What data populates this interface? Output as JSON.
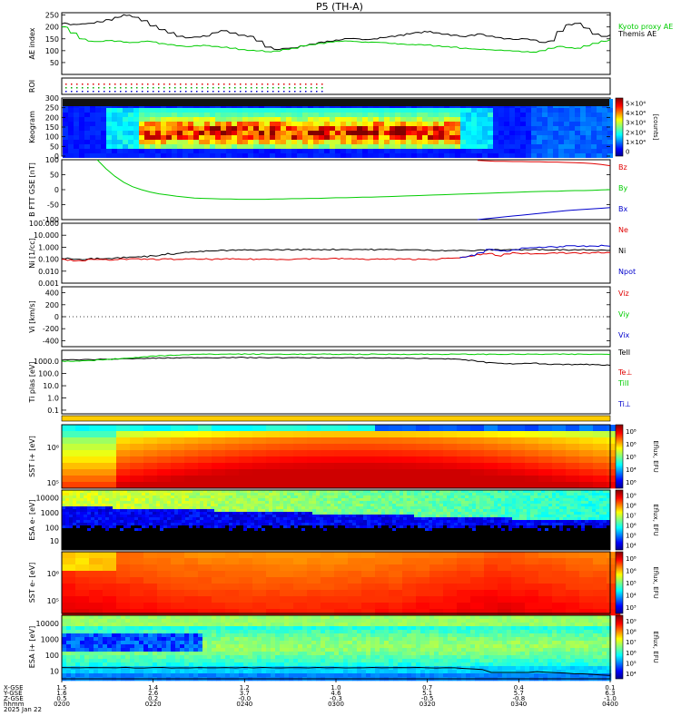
{
  "title": "P5 (TH-A)",
  "colors": {
    "red": "#e00000",
    "green": "#00cc00",
    "blue": "#0000cc",
    "black": "#000000",
    "yellow_bar": "#ffcc00"
  },
  "chart_data": {
    "type": "line",
    "title": "P5 (TH-A)",
    "time_axis": {
      "ticks": [
        "0200",
        "0220",
        "0240",
        "0300",
        "0320",
        "0340",
        "0400"
      ],
      "date": "2025 Jan 22",
      "row_labels": [
        "X-GSE",
        "Y-GSE",
        "Z-GSE",
        "hhmm",
        "2025 Jan 22"
      ],
      "x_gse": [
        "1.5",
        "1.4",
        "1.2",
        "1.0",
        "0.7",
        "0.4",
        "0.1"
      ],
      "y_gse": [
        "1.6",
        "2.6",
        "3.7",
        "4.6",
        "5.1",
        "5.7",
        "6.3"
      ],
      "z_gse": [
        "0.5",
        "0.2",
        "-0.0",
        "-0.3",
        "-0.5",
        "-0.8",
        "-1.0"
      ]
    },
    "panels": [
      {
        "id": "ae",
        "ylabel": "AE index",
        "yticks": [
          "50",
          "100",
          "150",
          "200",
          "250"
        ],
        "ylim": [
          0,
          260
        ],
        "legend": [
          "Kyoto proxy AE",
          "Themis AE"
        ],
        "series": [
          {
            "name": "Themis AE",
            "color": "black",
            "values": [
              215,
              210,
              212,
              215,
              222,
              230,
              240,
              250,
              240,
              225,
              205,
              190,
              175,
              160,
              155,
              158,
              162,
              175,
              185,
              175,
              165,
              160,
              140,
              115,
              105,
              110,
              112,
              120,
              128,
              135,
              140,
              145,
              150,
              150,
              148,
              150,
              155,
              160,
              165,
              172,
              176,
              180,
              175,
              170,
              165,
              160,
              165,
              170,
              160,
              155,
              150,
              148,
              150,
              145,
              135,
              140,
              180,
              210,
              215,
              195,
              170,
              160,
              165
            ]
          },
          {
            "name": "Kyoto proxy AE",
            "color": "green",
            "values": [
              200,
              175,
              150,
              140,
              138,
              142,
              140,
              135,
              136,
              140,
              138,
              130,
              125,
              120,
              118,
              120,
              122,
              118,
              115,
              110,
              105,
              102,
              100,
              95,
              98,
              105,
              110,
              120,
              125,
              130,
              135,
              140,
              140,
              138,
              136,
              135,
              134,
              130,
              128,
              126,
              125,
              124,
              120,
              118,
              115,
              110,
              108,
              106,
              104,
              102,
              100,
              98,
              96,
              94,
              100,
              110,
              118,
              112,
              110,
              120,
              130,
              140,
              148
            ]
          }
        ]
      },
      {
        "id": "roi",
        "ylabel": "ROI",
        "yticks": [],
        "series": []
      },
      {
        "id": "keogram",
        "ylabel": "Keogram",
        "yticks": [
          "0",
          "50",
          "100",
          "150",
          "200",
          "250",
          "300"
        ],
        "ylim": [
          0,
          300
        ],
        "colorbar": {
          "label": "[counts]",
          "ticks": [
            "0",
            "1×10⁴",
            "2×10⁴",
            "3×10⁴",
            "4×10⁴",
            "5×10⁴"
          ]
        }
      },
      {
        "id": "bfft",
        "ylabel": "B FTT GSE [nT]",
        "yticks": [
          "-100",
          "-50",
          "0",
          "50",
          "100"
        ],
        "ylim": [
          -100,
          100
        ],
        "legend": [
          "Bz",
          "By",
          "Bx"
        ],
        "series": [
          {
            "name": "Bz",
            "color": "red",
            "values": [
              null,
              null,
              null,
              null,
              null,
              null,
              null,
              null,
              null,
              null,
              null,
              null,
              null,
              null,
              null,
              null,
              null,
              null,
              null,
              null,
              null,
              null,
              null,
              null,
              null,
              null,
              null,
              null,
              null,
              null,
              null,
              null,
              null,
              null,
              null,
              null,
              null,
              null,
              null,
              null,
              null,
              null,
              null,
              null,
              null,
              null,
              null,
              98,
              96,
              95,
              95,
              94,
              94,
              93,
              93,
              92,
              92,
              91,
              90,
              89,
              87,
              84,
              80
            ]
          },
          {
            "name": "By",
            "color": "green",
            "values": [
              null,
              null,
              null,
              null,
              100,
              70,
              45,
              25,
              10,
              0,
              -8,
              -14,
              -18,
              -22,
              -25,
              -28,
              -29,
              -30,
              -31,
              -31,
              -32,
              -32,
              -32,
              -32,
              -31,
              -31,
              -30,
              -30,
              -29,
              -29,
              -28,
              -27,
              -27,
              -26,
              -25,
              -25,
              -24,
              -23,
              -22,
              -21,
              -20,
              -19,
              -18,
              -17,
              -16,
              -15,
              -14,
              -13,
              -12,
              -11,
              -10,
              -9,
              -8,
              -7,
              -6,
              -5,
              -5,
              -4,
              -3,
              -3,
              -2,
              -1,
              0
            ]
          },
          {
            "name": "Bx",
            "color": "blue",
            "values": [
              null,
              null,
              null,
              null,
              null,
              null,
              null,
              null,
              null,
              null,
              null,
              null,
              null,
              null,
              null,
              null,
              null,
              null,
              null,
              null,
              null,
              null,
              null,
              null,
              null,
              null,
              null,
              null,
              null,
              null,
              null,
              null,
              null,
              null,
              null,
              null,
              null,
              null,
              null,
              null,
              null,
              null,
              null,
              null,
              null,
              null,
              null,
              -100,
              -97,
              -94,
              -91,
              -88,
              -85,
              -82,
              -79,
              -76,
              -73,
              -70,
              -68,
              -66,
              -64,
              -62,
              -60
            ]
          }
        ]
      },
      {
        "id": "density",
        "ylabel": "Ni [1/cc]",
        "yticks": [
          "0.001",
          "0.010",
          "0.100",
          "1.000",
          "10.000",
          "100.000"
        ],
        "ylim": [
          0.001,
          100
        ],
        "log": true,
        "legend": [
          "Ne",
          "Ni",
          "Npot"
        ],
        "series": [
          {
            "name": "Ni",
            "color": "black",
            "values": [
              0.12,
              0.11,
              0.1,
              0.11,
              0.12,
              0.12,
              0.13,
              0.14,
              0.15,
              0.17,
              0.2,
              0.22,
              0.28,
              0.33,
              0.38,
              0.42,
              0.46,
              0.5,
              0.53,
              0.55,
              0.57,
              0.58,
              0.6,
              0.6,
              0.61,
              0.62,
              0.62,
              0.63,
              0.63,
              0.64,
              0.64,
              0.65,
              0.65,
              0.64,
              0.64,
              0.63,
              0.63,
              0.62,
              0.62,
              0.6,
              0.58,
              0.57,
              0.56,
              0.55,
              0.54,
              0.53,
              0.52,
              0.55,
              0.6,
              0.62,
              0.63,
              0.62,
              0.6,
              0.62,
              0.63,
              0.64,
              0.62,
              0.6,
              0.62,
              0.61,
              0.6,
              0.6,
              0.6
            ]
          },
          {
            "name": "Ne",
            "color": "red",
            "values": [
              0.09,
              0.08,
              0.08,
              0.09,
              0.09,
              0.09,
              0.1,
              0.1,
              0.1,
              0.1,
              0.1,
              0.1,
              0.1,
              0.1,
              0.1,
              0.1,
              0.1,
              0.1,
              0.1,
              0.1,
              0.1,
              0.1,
              0.1,
              0.1,
              0.1,
              0.1,
              0.1,
              0.11,
              0.11,
              0.11,
              0.11,
              0.11,
              0.11,
              0.1,
              0.1,
              0.1,
              0.1,
              0.1,
              0.1,
              0.1,
              0.1,
              0.1,
              0.1,
              0.11,
              0.12,
              0.14,
              0.18,
              0.25,
              0.3,
              0.2,
              0.25,
              0.35,
              0.3,
              0.28,
              0.3,
              0.35,
              0.33,
              0.3,
              0.32,
              0.33,
              0.35,
              0.34,
              0.33
            ]
          },
          {
            "name": "Npot",
            "color": "blue",
            "values": [
              null,
              null,
              null,
              null,
              null,
              null,
              null,
              null,
              null,
              null,
              null,
              null,
              null,
              null,
              null,
              null,
              null,
              null,
              null,
              null,
              null,
              null,
              null,
              null,
              null,
              null,
              null,
              null,
              null,
              null,
              null,
              null,
              null,
              null,
              null,
              null,
              null,
              null,
              null,
              null,
              null,
              null,
              null,
              null,
              null,
              0.14,
              0.2,
              0.35,
              0.6,
              0.55,
              0.5,
              0.6,
              0.8,
              0.9,
              1.0,
              1.1,
              1.1,
              1.2,
              1.2,
              1.2,
              1.25,
              1.3,
              1.3
            ]
          }
        ]
      },
      {
        "id": "velocity",
        "ylabel": "Vi [km/s]",
        "yticks": [
          "-400",
          "-200",
          "0",
          "200",
          "400"
        ],
        "ylim": [
          -500,
          500
        ],
        "legend": [
          "Viz",
          "Viy",
          "Vix"
        ],
        "series": []
      },
      {
        "id": "temperature",
        "ylabel": "Ti plas [eV]",
        "yticks": [
          "0.1",
          "1.0",
          "10.0",
          "100.0",
          "1000.0"
        ],
        "ylim": [
          0.05,
          8000
        ],
        "log": true,
        "legend": [
          "TeII",
          "Te⊥",
          "TiII",
          "Ti⊥"
        ],
        "series": [
          {
            "name": "TeII",
            "color": "black",
            "values": [
              1300,
              1350,
              1380,
              1400,
              1450,
              1500,
              1550,
              1600,
              1650,
              1700,
              1800,
              1850,
              1900,
              1950,
              1950,
              2000,
              2000,
              2000,
              2050,
              2050,
              2050,
              2000,
              2000,
              2000,
              2000,
              1950,
              1950,
              1950,
              1950,
              1950,
              1950,
              1900,
              1900,
              1900,
              1900,
              1900,
              1850,
              1850,
              1800,
              1800,
              1750,
              1700,
              1650,
              1600,
              1500,
              1400,
              1200,
              1000,
              800,
              700,
              650,
              600,
              650,
              700,
              600,
              550,
              550,
              550,
              550,
              550,
              550,
              500,
              500
            ]
          },
          {
            "name": "TiII",
            "color": "green",
            "values": [
              1000,
              1050,
              1100,
              1200,
              1300,
              1450,
              1600,
              1800,
              2000,
              2300,
              2600,
              2900,
              3200,
              3400,
              3600,
              3700,
              3800,
              3850,
              3900,
              3900,
              3900,
              3900,
              3900,
              3850,
              3850,
              3850,
              3850,
              3800,
              3800,
              3800,
              3800,
              3800,
              3800,
              3800,
              3800,
              3800,
              3800,
              3800,
              3800,
              3800,
              3800,
              3800,
              3800,
              3800,
              3800,
              3800,
              3800,
              3800,
              3800,
              3800,
              3800,
              3800,
              3800,
              3800,
              3800,
              3800,
              3800,
              3800,
              3800,
              3800,
              3800,
              3800,
              3800
            ]
          }
        ]
      },
      {
        "id": "sst_ion",
        "ylabel": "SST i+ [eV]",
        "yticks": [
          "10⁵",
          "10⁶"
        ],
        "colorbar": {
          "label": "Eflux, EFU",
          "ticks": [
            "10⁶",
            "10⁴",
            "10⁵",
            "10⁶",
            "10⁸"
          ]
        }
      },
      {
        "id": "esa_e",
        "ylabel": "ESA e- [eV]",
        "yticks": [
          "10",
          "100",
          "1000",
          "10000"
        ],
        "colorbar": {
          "label": "Eflux, EFU",
          "ticks": [
            "10⁴",
            "10⁵",
            "10⁶",
            "10⁷",
            "10⁸",
            "10⁹"
          ]
        }
      },
      {
        "id": "sst_e",
        "ylabel": "SST e- [eV]",
        "yticks": [
          "10⁵",
          "10⁶"
        ],
        "colorbar": {
          "label": "Eflux, EFU",
          "ticks": [
            "10³",
            "10⁴",
            "10⁵",
            "10⁶",
            "10⁸"
          ]
        }
      },
      {
        "id": "esa_i",
        "ylabel": "ESA i+ [eV]",
        "yticks": [
          "10",
          "100",
          "1000",
          "10000"
        ],
        "colorbar": {
          "label": "Eflux, EFU",
          "ticks": [
            "10⁴",
            "10⁵",
            "10⁶",
            "10⁷",
            "10⁸",
            "10⁹"
          ]
        }
      }
    ]
  }
}
